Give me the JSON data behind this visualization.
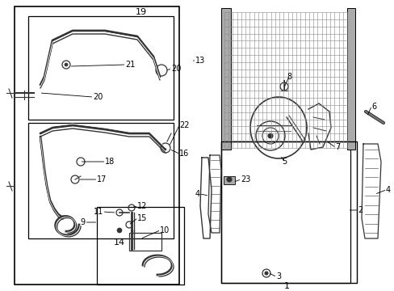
{
  "bg_color": "#ffffff",
  "line_color": "#333333",
  "box_color": "#000000",
  "text_color": "#000000",
  "figsize": [
    4.89,
    3.6
  ],
  "dpi": 100
}
